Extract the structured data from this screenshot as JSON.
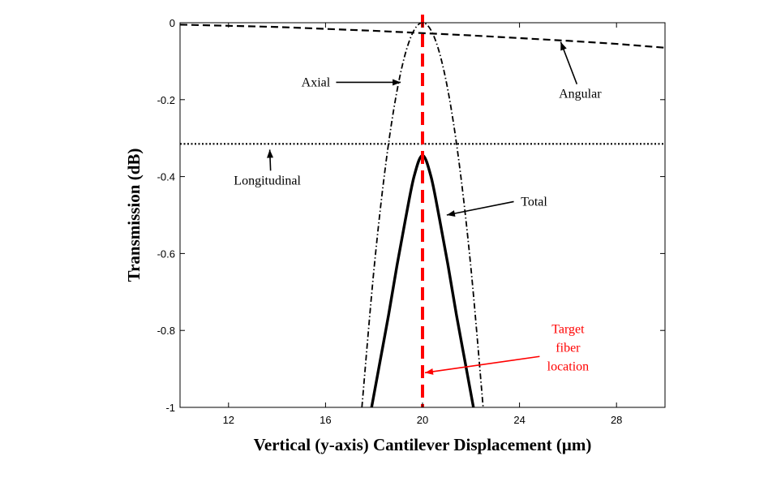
{
  "chart_data": {
    "type": "line",
    "xlabel": "Vertical (y-axis) Cantilever Displacement (μm)",
    "ylabel": "Transmission (dB)",
    "xlim": [
      10,
      30
    ],
    "ylim": [
      -1,
      0
    ],
    "xticks": [
      12,
      16,
      20,
      24,
      28
    ],
    "yticks": [
      0,
      -0.2,
      -0.4,
      -0.6,
      -0.8,
      -1
    ],
    "ytick_labels": [
      "0",
      "-0.2",
      "-0.4",
      "-0.6",
      "-0.8",
      "-1"
    ],
    "grid": false,
    "colors": {
      "series": "#000000",
      "target": "#ff0000"
    },
    "series": [
      {
        "name": "Angular",
        "style": "dashed",
        "x": [
          10,
          12,
          14,
          16,
          18,
          20,
          22,
          24,
          26,
          28,
          30
        ],
        "y": [
          -0.005,
          -0.008,
          -0.011,
          -0.016,
          -0.021,
          -0.027,
          -0.033,
          -0.04,
          -0.047,
          -0.055,
          -0.065
        ]
      },
      {
        "name": "Axial",
        "style": "dashdot",
        "x": [
          17.5,
          18.0,
          18.5,
          19.0,
          19.5,
          20.0,
          20.5,
          21.0,
          21.5,
          22.0,
          22.5
        ],
        "y": [
          -1.0,
          -0.64,
          -0.36,
          -0.16,
          -0.04,
          0.0,
          -0.04,
          -0.16,
          -0.36,
          -0.64,
          -1.0
        ]
      },
      {
        "name": "Longitudinal",
        "style": "dotted",
        "x": [
          10,
          30
        ],
        "y": [
          -0.315,
          -0.315
        ]
      },
      {
        "name": "Total",
        "style": "solid",
        "x": [
          17.9,
          18.25,
          18.6,
          18.95,
          19.3,
          19.65,
          20.0,
          20.35,
          20.7,
          21.05,
          21.4,
          21.75,
          22.1
        ],
        "y": [
          -1.0,
          -0.88,
          -0.76,
          -0.63,
          -0.51,
          -0.4,
          -0.345,
          -0.4,
          -0.51,
          -0.63,
          -0.76,
          -0.88,
          -1.0
        ]
      }
    ],
    "target_line": {
      "x": 20,
      "style": "dashed"
    },
    "annotations": [
      {
        "text": "Axial",
        "x": 15.6,
        "y": -0.155,
        "arrow_to": [
          19.1,
          -0.155
        ]
      },
      {
        "text": "Angular",
        "x": 26.5,
        "y": -0.185,
        "arrow_to": [
          25.7,
          -0.05
        ]
      },
      {
        "text": "Longitudinal",
        "x": 13.6,
        "y": -0.41,
        "arrow_to": [
          13.7,
          -0.33
        ]
      },
      {
        "text": "Total",
        "x": 24.6,
        "y": -0.465,
        "arrow_to": [
          21.0,
          -0.5
        ]
      },
      {
        "lines": [
          "Target",
          "fiber",
          "location"
        ],
        "x": 26.0,
        "y": -0.855,
        "arrow_to": [
          20.1,
          -0.91
        ],
        "color": "#ff0000"
      }
    ]
  }
}
